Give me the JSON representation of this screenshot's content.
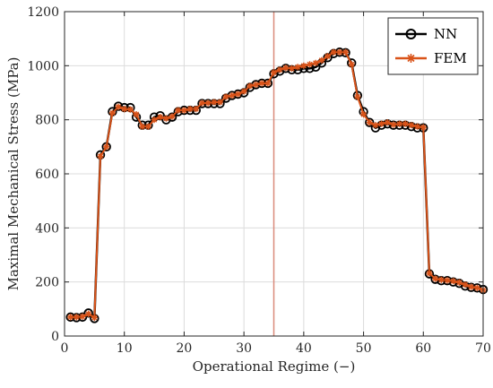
{
  "chart_data": {
    "type": "line",
    "xlabel": "Operational Regime (−)",
    "ylabel": "Maximal Mechanical Stress (MPa)",
    "xlim": [
      0,
      70
    ],
    "ylim": [
      0,
      1200
    ],
    "xticks": [
      0,
      10,
      20,
      30,
      40,
      50,
      60,
      70
    ],
    "yticks": [
      0,
      200,
      400,
      600,
      800,
      1000,
      1200
    ],
    "grid": true,
    "legend_position": "top-right",
    "vertical_line_x": 35,
    "x": [
      1,
      2,
      3,
      4,
      5,
      6,
      7,
      8,
      9,
      10,
      11,
      12,
      13,
      14,
      15,
      16,
      17,
      18,
      19,
      20,
      21,
      22,
      23,
      24,
      25,
      26,
      27,
      28,
      29,
      30,
      31,
      32,
      33,
      34,
      35,
      36,
      37,
      38,
      39,
      40,
      41,
      42,
      43,
      44,
      45,
      46,
      47,
      48,
      49,
      50,
      51,
      52,
      53,
      54,
      55,
      56,
      57,
      58,
      59,
      60,
      61,
      62,
      63,
      64,
      65,
      66,
      67,
      68,
      69,
      70
    ],
    "series": [
      {
        "name": "NN",
        "color": "#000000",
        "marker": "circle",
        "values": [
          70,
          68,
          70,
          85,
          65,
          670,
          700,
          830,
          850,
          845,
          845,
          810,
          780,
          780,
          810,
          815,
          800,
          810,
          830,
          835,
          835,
          835,
          860,
          860,
          860,
          860,
          880,
          890,
          895,
          900,
          920,
          930,
          935,
          935,
          970,
          980,
          990,
          985,
          985,
          990,
          990,
          995,
          1010,
          1030,
          1045,
          1050,
          1048,
          1010,
          890,
          830,
          790,
          770,
          780,
          785,
          780,
          780,
          780,
          775,
          770,
          770,
          230,
          210,
          205,
          205,
          200,
          195,
          185,
          180,
          178,
          172
        ],
        "visible_value_labels": []
      },
      {
        "name": "FEM",
        "color": "#d95319",
        "marker": "star",
        "values": [
          70,
          70,
          72,
          82,
          68,
          665,
          700,
          825,
          848,
          840,
          838,
          820,
          775,
          775,
          800,
          810,
          805,
          812,
          835,
          835,
          840,
          840,
          862,
          862,
          865,
          865,
          885,
          890,
          895,
          905,
          925,
          930,
          935,
          935,
          975,
          985,
          992,
          990,
          995,
          1000,
          1005,
          1010,
          1020,
          1035,
          1050,
          1050,
          1050,
          1005,
          885,
          820,
          790,
          780,
          785,
          790,
          782,
          785,
          785,
          780,
          775,
          772,
          232,
          212,
          208,
          206,
          203,
          198,
          190,
          182,
          178,
          170
        ],
        "visible_value_labels": []
      }
    ]
  }
}
